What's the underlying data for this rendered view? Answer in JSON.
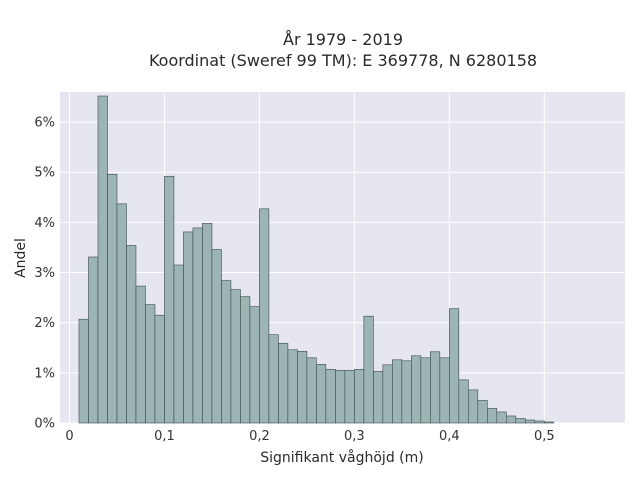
{
  "chart_data": {
    "type": "bar",
    "title_line1": "År 1979 - 2019",
    "title_line2": "Koordinat (Sweref 99 TM): E 369778, N 6280158",
    "xlabel": "Signifikant våghöjd (m)",
    "ylabel": "Andel",
    "xlim": [
      -0.01,
      0.585
    ],
    "ylim": [
      0,
      0.066
    ],
    "x_ticks": [
      {
        "value": 0,
        "label": "0"
      },
      {
        "value": 0.1,
        "label": "0,1"
      },
      {
        "value": 0.2,
        "label": "0,2"
      },
      {
        "value": 0.3,
        "label": "0,3"
      },
      {
        "value": 0.4,
        "label": "0,4"
      },
      {
        "value": 0.5,
        "label": "0,5"
      }
    ],
    "y_ticks": [
      {
        "value": 0,
        "label": "0%"
      },
      {
        "value": 0.01,
        "label": "1%"
      },
      {
        "value": 0.02,
        "label": "2%"
      },
      {
        "value": 0.03,
        "label": "3%"
      },
      {
        "value": 0.04,
        "label": "4%"
      },
      {
        "value": 0.05,
        "label": "5%"
      },
      {
        "value": 0.06,
        "label": "6%"
      }
    ],
    "grid": true,
    "bin_start": 0.01,
    "bin_width": 0.01,
    "values": [
      0.0207,
      0.0331,
      0.0652,
      0.0496,
      0.0437,
      0.0354,
      0.0273,
      0.0236,
      0.0215,
      0.0492,
      0.0315,
      0.0381,
      0.0389,
      0.0398,
      0.0346,
      0.0284,
      0.0266,
      0.0252,
      0.0232,
      0.0427,
      0.0176,
      0.0159,
      0.0146,
      0.0143,
      0.013,
      0.0117,
      0.0107,
      0.0105,
      0.0105,
      0.0107,
      0.0213,
      0.0103,
      0.0116,
      0.0126,
      0.0124,
      0.0134,
      0.013,
      0.0142,
      0.013,
      0.0228,
      0.0086,
      0.0066,
      0.0045,
      0.0029,
      0.0022,
      0.0014,
      0.0009,
      0.0006,
      0.0004,
      0.0002
    ],
    "colors": {
      "plot_background": "#e5e6ef",
      "bar_fill": "#9db4b5",
      "bar_stroke": "#3a4a48",
      "grid": "#ffffff"
    }
  }
}
